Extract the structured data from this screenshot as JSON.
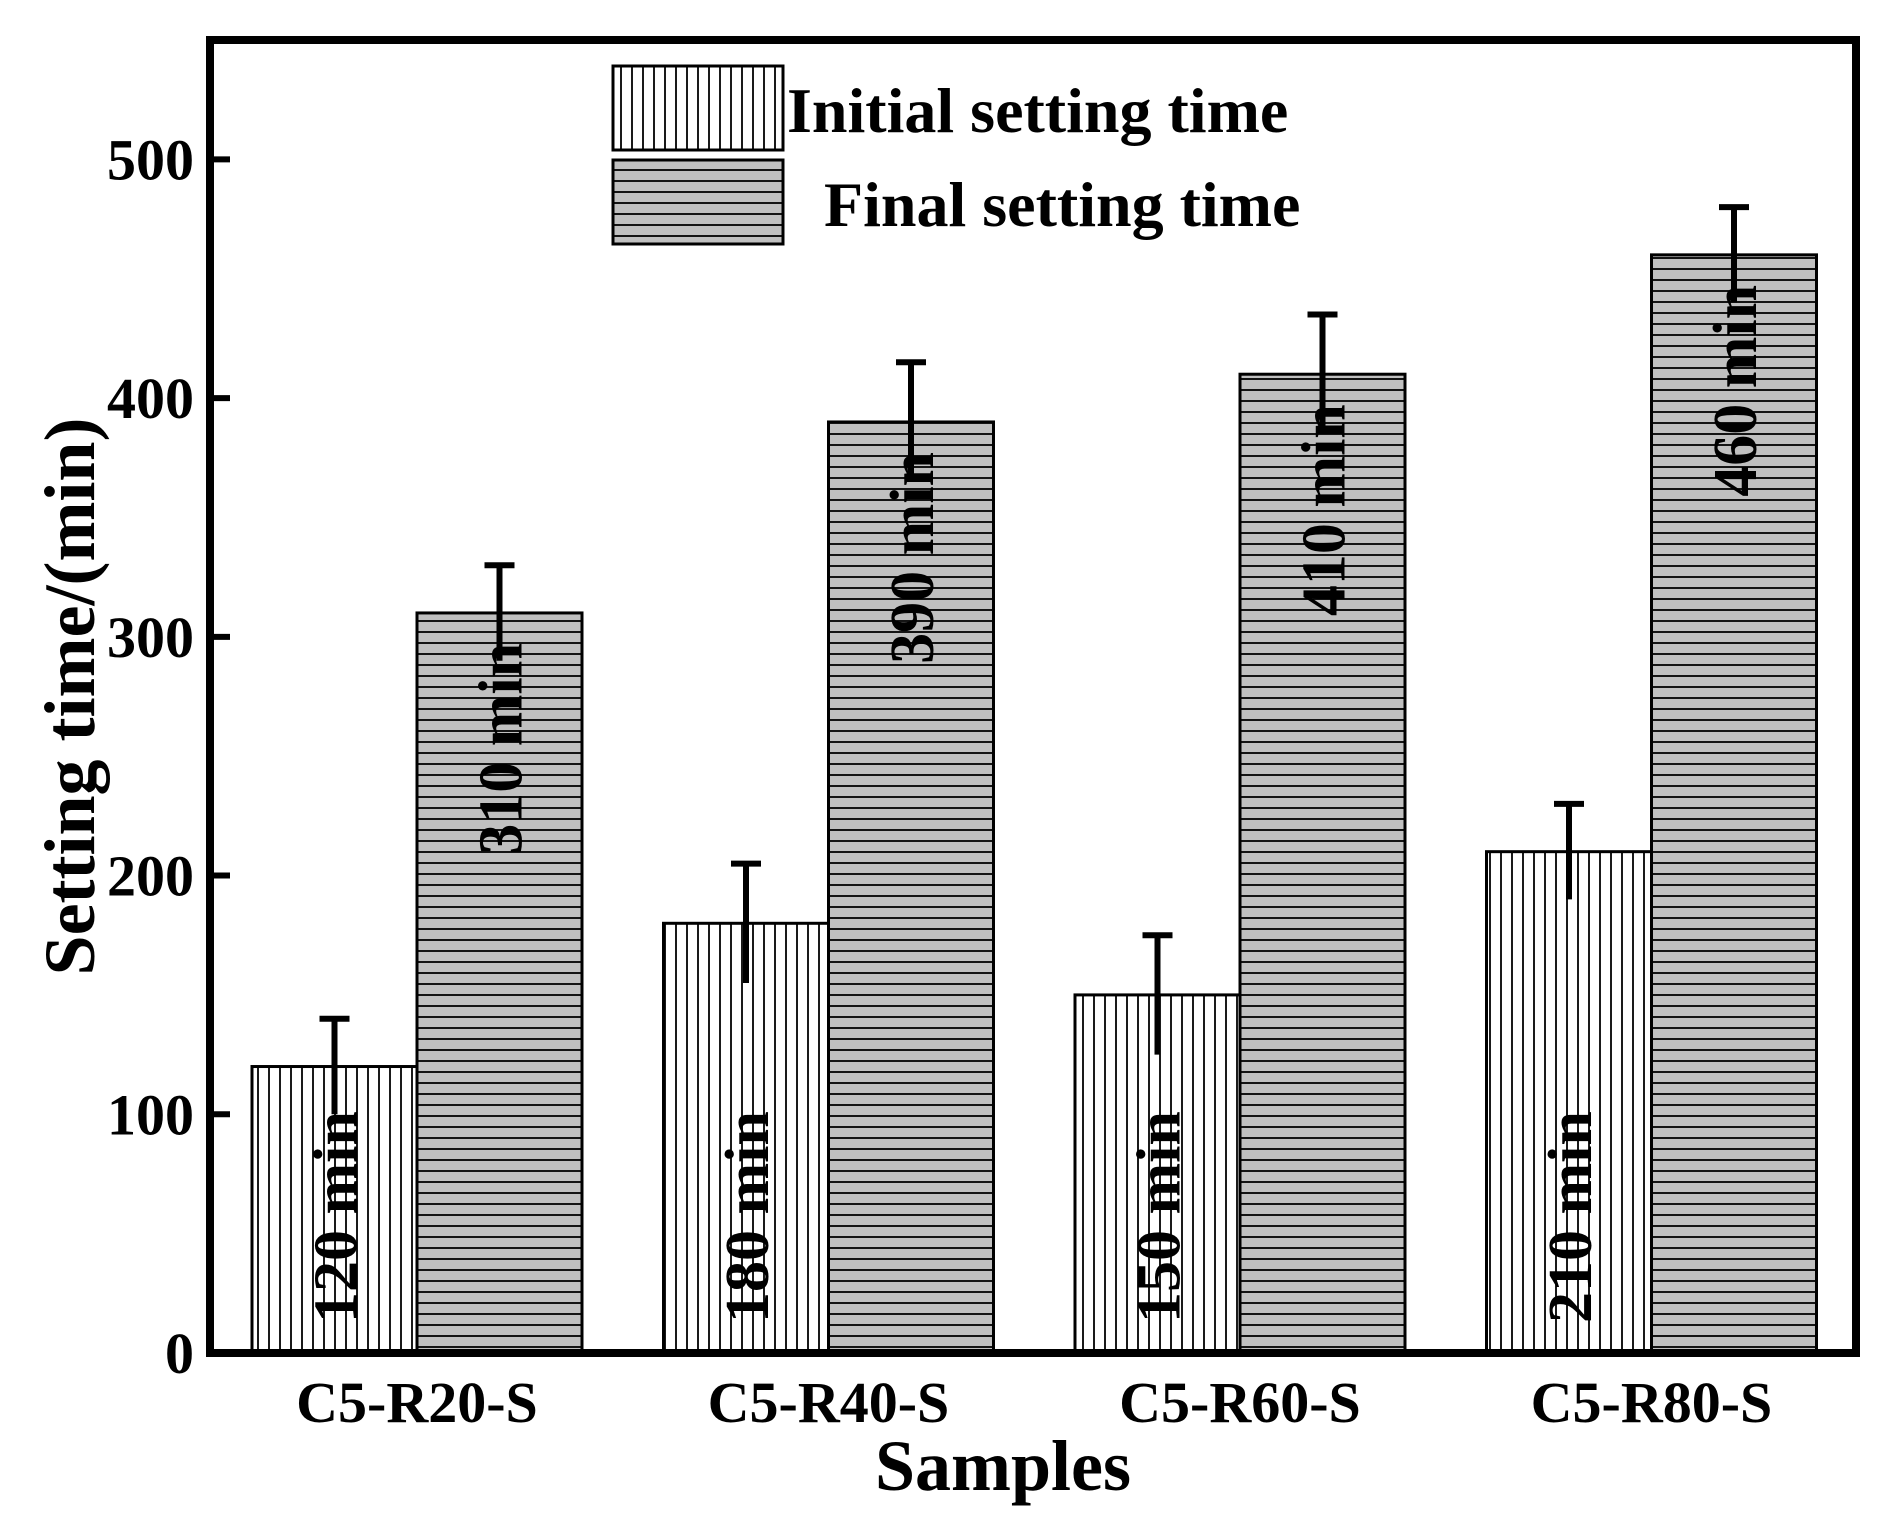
{
  "chart_data": {
    "type": "bar",
    "xlabel": "Samples",
    "ylabel": "Setting time/(min)",
    "ylim": [
      0,
      550
    ],
    "yticks": [
      0,
      100,
      200,
      300,
      400,
      500
    ],
    "categories": [
      "C5-R20-S",
      "C5-R40-S",
      "C5-R60-S",
      "C5-R80-S"
    ],
    "series": [
      {
        "name": "Initial setting time",
        "values": [
          120,
          180,
          150,
          210
        ],
        "errors": [
          20,
          25,
          25,
          20
        ],
        "labels": [
          "120 min",
          "180 min",
          "150 min",
          "210 min"
        ],
        "pattern": "vertical-lines",
        "fill": "#ffffff"
      },
      {
        "name": "Final setting time",
        "values": [
          310,
          390,
          410,
          460
        ],
        "errors": [
          20,
          25,
          25,
          20
        ],
        "labels": [
          "310 min",
          "390 min",
          "410 min",
          "460 min"
        ],
        "pattern": "horizontal-lines",
        "fill": "#c0c0c0"
      }
    ],
    "legend_position": "top-center",
    "grid": false
  }
}
